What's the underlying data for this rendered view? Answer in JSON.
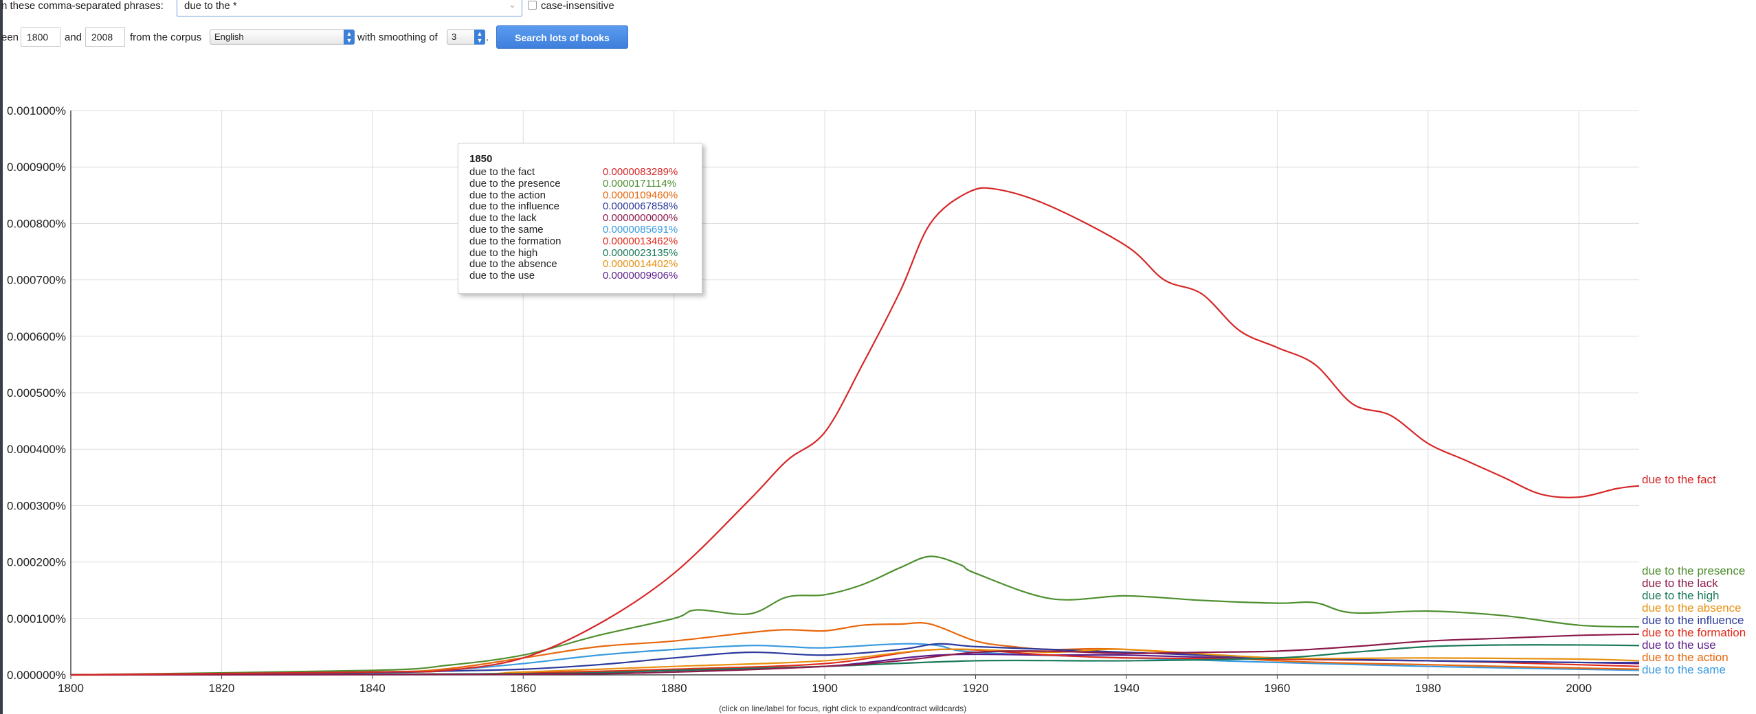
{
  "controls": {
    "phrases_label": "n these comma-separated phrases:",
    "query_value": "due to the *",
    "case_insensitive_label": "case-insensitive",
    "between_label": "een",
    "year_start": "1800",
    "and_label": "and",
    "year_end": "2008",
    "corpus_label": "from the corpus",
    "corpus_value": "English",
    "smoothing_label": "with smoothing of",
    "smoothing_value": "3",
    "period": ".",
    "search_button": "Search lots of books"
  },
  "tooltip": {
    "year": "1850",
    "rows": [
      {
        "label": "due to the fact",
        "value": "0.0000083289%",
        "color": "#d62728"
      },
      {
        "label": "due to the presence",
        "value": "0.0000171114%",
        "color": "#4e8f2f"
      },
      {
        "label": "due to the action",
        "value": "0.0000109460%",
        "color": "#e8670c"
      },
      {
        "label": "due to the influence",
        "value": "0.0000067858%",
        "color": "#2b3a9c"
      },
      {
        "label": "due to the lack",
        "value": "0.0000000000%",
        "color": "#8b1a4a"
      },
      {
        "label": "due to the same",
        "value": "0.0000085691%",
        "color": "#3a9ae0"
      },
      {
        "label": "due to the formation",
        "value": "0.0000013462%",
        "color": "#e02b1b"
      },
      {
        "label": "due to the high",
        "value": "0.0000023135%",
        "color": "#1a7a5a"
      },
      {
        "label": "due to the absence",
        "value": "0.0000014402%",
        "color": "#e89010"
      },
      {
        "label": "due to the use",
        "value": "0.0000009906%",
        "color": "#5a1e8c"
      }
    ]
  },
  "hint": "(click on line/label for focus, right click to expand/contract wildcards)",
  "chart_data": {
    "type": "line",
    "x_range": [
      1800,
      2008
    ],
    "ylim": [
      0,
      0.001
    ],
    "y_unit": "%",
    "y_ticks": [
      "0.000000%",
      "0.000100%",
      "0.000200%",
      "0.000300%",
      "0.000400%",
      "0.000500%",
      "0.000600%",
      "0.000700%",
      "0.000800%",
      "0.000900%",
      "0.001000%"
    ],
    "y_tick_values": [
      0,
      0.0001,
      0.0002,
      0.0003,
      0.0004,
      0.0005,
      0.0006,
      0.0007,
      0.0008,
      0.0009,
      0.001
    ],
    "x_ticks": [
      1800,
      1820,
      1840,
      1860,
      1880,
      1900,
      1920,
      1940,
      1960,
      1980,
      2000
    ],
    "grid": true,
    "legend": "right-end-labels",
    "series": [
      {
        "name": "due to the fact",
        "color": "#d62728",
        "x": [
          1800,
          1840,
          1850,
          1860,
          1870,
          1880,
          1890,
          1895,
          1900,
          1905,
          1910,
          1914,
          1919,
          1923,
          1930,
          1940,
          1945,
          1950,
          1955,
          1960,
          1965,
          1970,
          1975,
          1980,
          1985,
          1990,
          1995,
          2000,
          2005,
          2008
        ],
        "y": [
          0,
          5e-06,
          8.3e-06,
          3e-05,
          9e-05,
          0.00018,
          0.00031,
          0.00038,
          0.00043,
          0.00055,
          0.00068,
          0.0008,
          0.000855,
          0.00086,
          0.00083,
          0.00076,
          0.0007,
          0.000675,
          0.00061,
          0.00058,
          0.00055,
          0.00048,
          0.00046,
          0.00041,
          0.00038,
          0.00035,
          0.00032,
          0.000315,
          0.00033,
          0.000335
        ]
      },
      {
        "name": "due to the presence",
        "color": "#4e8f2f",
        "x": [
          1800,
          1840,
          1850,
          1860,
          1870,
          1880,
          1883,
          1890,
          1895,
          1900,
          1905,
          1910,
          1914,
          1918,
          1920,
          1930,
          1940,
          1950,
          1960,
          1965,
          1970,
          1980,
          1990,
          2000,
          2008
        ],
        "y": [
          0,
          8e-06,
          1.7e-05,
          3.5e-05,
          7e-05,
          0.0001,
          0.000115,
          0.000108,
          0.000138,
          0.000142,
          0.00016,
          0.00019,
          0.00021,
          0.000195,
          0.00018,
          0.000135,
          0.00014,
          0.000132,
          0.000127,
          0.000128,
          0.00011,
          0.000113,
          0.000105,
          8.8e-05,
          8.5e-05
        ]
      },
      {
        "name": "due to the lack",
        "color": "#8b1a4a",
        "x": [
          1800,
          1860,
          1880,
          1900,
          1910,
          1920,
          1930,
          1940,
          1950,
          1960,
          1970,
          1980,
          1990,
          2000,
          2008
        ],
        "y": [
          0,
          1e-06,
          5e-06,
          1.5e-05,
          2.5e-05,
          4e-05,
          4.2e-05,
          3.8e-05,
          4e-05,
          4.2e-05,
          5e-05,
          6e-05,
          6.5e-05,
          7e-05,
          7.2e-05
        ]
      },
      {
        "name": "due to the high",
        "color": "#1a7a5a",
        "x": [
          1800,
          1860,
          1880,
          1900,
          1920,
          1940,
          1960,
          1970,
          1980,
          1990,
          2000,
          2008
        ],
        "y": [
          0,
          2e-06,
          8e-06,
          1.5e-05,
          2.5e-05,
          2.5e-05,
          3e-05,
          4e-05,
          5e-05,
          5.3e-05,
          5.3e-05,
          5.2e-05
        ]
      },
      {
        "name": "due to the absence",
        "color": "#e89010",
        "x": [
          1800,
          1850,
          1860,
          1880,
          1900,
          1915,
          1930,
          1940,
          1960,
          1980,
          2000,
          2008
        ],
        "y": [
          0,
          1.4e-06,
          5e-06,
          1.5e-05,
          2.5e-05,
          4.5e-05,
          4e-05,
          4.5e-05,
          3e-05,
          3e-05,
          2.8e-05,
          2.5e-05
        ]
      },
      {
        "name": "due to the influence",
        "color": "#2b3a9c",
        "x": [
          1800,
          1840,
          1850,
          1860,
          1870,
          1880,
          1890,
          1900,
          1910,
          1915,
          1920,
          1930,
          1940,
          1950,
          1960,
          1980,
          2000,
          2008
        ],
        "y": [
          0,
          4e-06,
          6.8e-06,
          1e-05,
          1.8e-05,
          3e-05,
          4e-05,
          3.5e-05,
          4.5e-05,
          5.5e-05,
          5e-05,
          4.5e-05,
          4e-05,
          3.5e-05,
          3e-05,
          2.5e-05,
          2.2e-05,
          2.2e-05
        ]
      },
      {
        "name": "due to the formation",
        "color": "#e02b1b",
        "x": [
          1800,
          1850,
          1860,
          1880,
          1900,
          1915,
          1930,
          1940,
          1960,
          1980,
          2000,
          2008
        ],
        "y": [
          0,
          1.3e-06,
          3e-06,
          1e-05,
          2e-05,
          4.5e-05,
          3.5e-05,
          3e-05,
          2.8e-05,
          2.5e-05,
          1.8e-05,
          1.5e-05
        ]
      },
      {
        "name": "due to the use",
        "color": "#5a1e8c",
        "x": [
          1800,
          1850,
          1860,
          1880,
          1900,
          1915,
          1930,
          1940,
          1960,
          1980,
          2000,
          2008
        ],
        "y": [
          0,
          1e-06,
          2e-06,
          8e-06,
          1.5e-05,
          3.5e-05,
          3.5e-05,
          3.5e-05,
          2.8e-05,
          2.5e-05,
          2.2e-05,
          2e-05
        ]
      },
      {
        "name": "due to the action",
        "color": "#e8670c",
        "x": [
          1800,
          1840,
          1850,
          1860,
          1870,
          1880,
          1890,
          1895,
          1900,
          1905,
          1910,
          1914,
          1920,
          1925,
          1930,
          1940,
          1960,
          1980,
          2000,
          2008
        ],
        "y": [
          0,
          5e-06,
          1.1e-05,
          3e-05,
          5e-05,
          6e-05,
          7.5e-05,
          8e-05,
          7.8e-05,
          8.8e-05,
          9e-05,
          9e-05,
          6e-05,
          5e-05,
          4.5e-05,
          4.5e-05,
          2.5e-05,
          1.8e-05,
          1.2e-05,
          1e-05
        ]
      },
      {
        "name": "due to the same",
        "color": "#3a9ae0",
        "x": [
          1800,
          1840,
          1850,
          1860,
          1870,
          1880,
          1890,
          1895,
          1900,
          1910,
          1915,
          1920,
          1940,
          1960,
          1980,
          2000,
          2008
        ],
        "y": [
          0,
          5e-06,
          8.6e-06,
          2e-05,
          3.5e-05,
          4.5e-05,
          5.2e-05,
          5e-05,
          4.8e-05,
          5.5e-05,
          5.2e-05,
          4e-05,
          3e-05,
          2.2e-05,
          1.5e-05,
          1e-05,
          8e-06
        ]
      }
    ],
    "end_labels": [
      {
        "name": "due to the fact",
        "color": "#d62728"
      },
      {
        "name": "due to the presence",
        "color": "#4e8f2f"
      },
      {
        "name": "due to the lack",
        "color": "#8b1a4a"
      },
      {
        "name": "due to the high",
        "color": "#1a7a5a"
      },
      {
        "name": "due to the absence",
        "color": "#e89010"
      },
      {
        "name": "due to the influence",
        "color": "#2b3a9c"
      },
      {
        "name": "due to the formation",
        "color": "#e02b1b"
      },
      {
        "name": "due to the use",
        "color": "#5a1e8c"
      },
      {
        "name": "due to the action",
        "color": "#e8670c"
      },
      {
        "name": "due to the same",
        "color": "#3a9ae0"
      }
    ]
  }
}
